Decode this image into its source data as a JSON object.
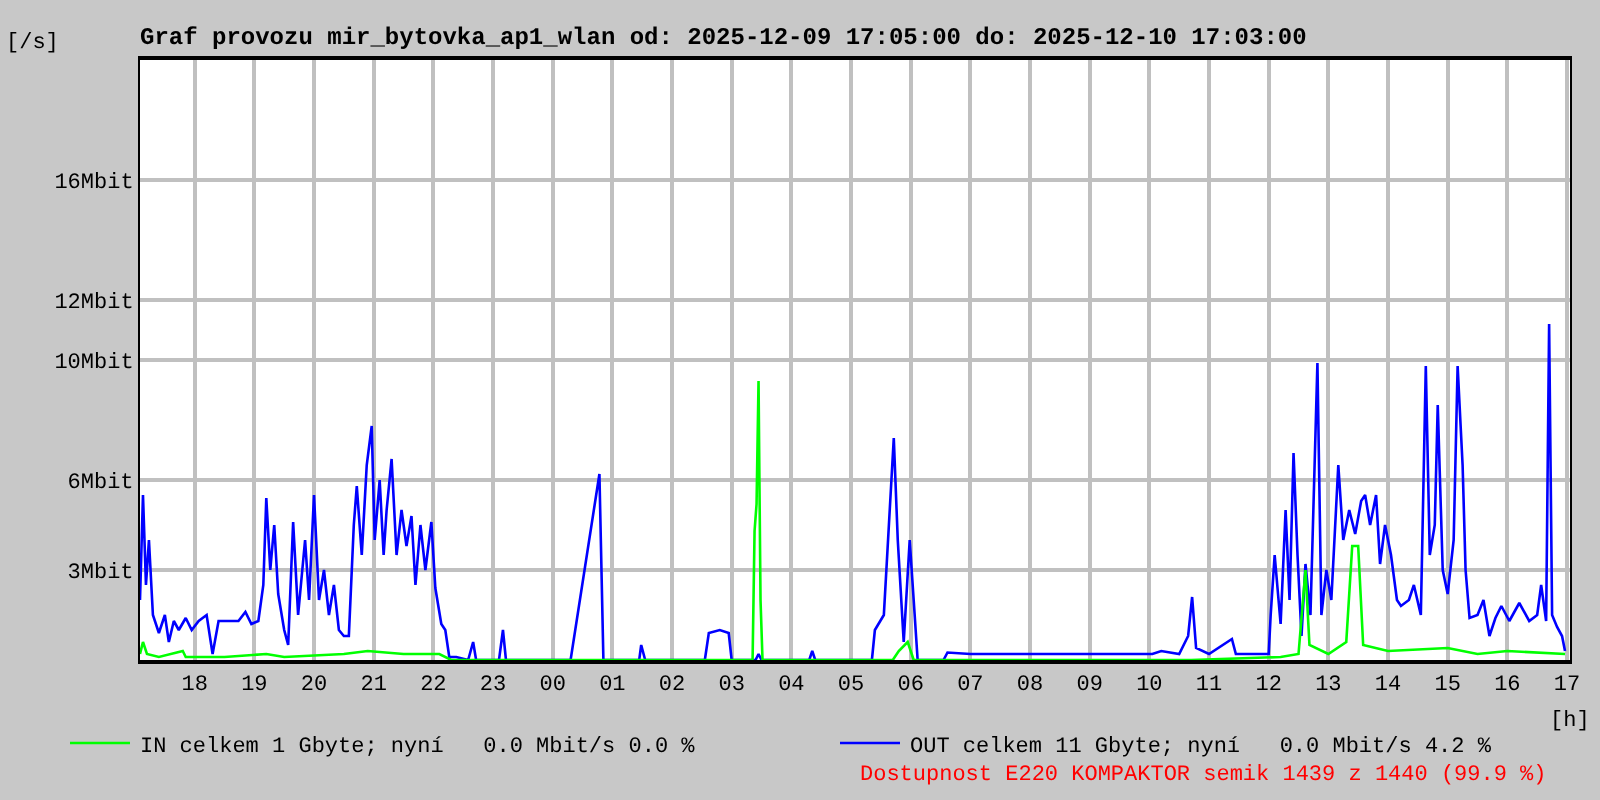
{
  "chart_data": {
    "type": "line",
    "title": "Graf provozu mir_bytovka_ap1_wlan od: 2025-12-09 17:05:00 do: 2025-12-10 17:03:00",
    "xlabel": "[h]",
    "ylabel": "[/s]",
    "xlim": [
      "2025-12-09T17:05",
      "2025-12-10T17:03"
    ],
    "ylim": [
      0,
      20
    ],
    "xticks": [
      {
        "value": "2025-12-09T18:00",
        "label": "18"
      },
      {
        "value": "2025-12-09T19:00",
        "label": "19"
      },
      {
        "value": "2025-12-09T20:00",
        "label": "20"
      },
      {
        "value": "2025-12-09T21:00",
        "label": "21"
      },
      {
        "value": "2025-12-09T22:00",
        "label": "22"
      },
      {
        "value": "2025-12-09T23:00",
        "label": "23"
      },
      {
        "value": "2025-12-10T00:00",
        "label": "00"
      },
      {
        "value": "2025-12-10T01:00",
        "label": "01"
      },
      {
        "value": "2025-12-10T02:00",
        "label": "02"
      },
      {
        "value": "2025-12-10T03:00",
        "label": "03"
      },
      {
        "value": "2025-12-10T04:00",
        "label": "04"
      },
      {
        "value": "2025-12-10T05:00",
        "label": "05"
      },
      {
        "value": "2025-12-10T06:00",
        "label": "06"
      },
      {
        "value": "2025-12-10T07:00",
        "label": "07"
      },
      {
        "value": "2025-12-10T08:00",
        "label": "08"
      },
      {
        "value": "2025-12-10T09:00",
        "label": "09"
      },
      {
        "value": "2025-12-10T10:00",
        "label": "10"
      },
      {
        "value": "2025-12-10T11:00",
        "label": "11"
      },
      {
        "value": "2025-12-10T12:00",
        "label": "12"
      },
      {
        "value": "2025-12-10T13:00",
        "label": "13"
      },
      {
        "value": "2025-12-10T14:00",
        "label": "14"
      },
      {
        "value": "2025-12-10T15:00",
        "label": "15"
      },
      {
        "value": "2025-12-10T16:00",
        "label": "16"
      },
      {
        "value": "2025-12-10T17:00",
        "label": "17"
      }
    ],
    "yticks": [
      {
        "value": 3,
        "label": "3Mbit"
      },
      {
        "value": 6,
        "label": "6Mbit"
      },
      {
        "value": 10,
        "label": "10Mbit"
      },
      {
        "value": 12,
        "label": "12Mbit"
      },
      {
        "value": 16,
        "label": "16Mbit"
      }
    ],
    "grid": true,
    "legend": "bottom",
    "annotations": [
      "Dostupnost E220 KOMPAKTOR semik 1439 z 1440 (99.9 %)"
    ],
    "series": [
      {
        "name": "IN celkem 1 Gbyte; nyní   0.0 Mbit/s 0.0 %",
        "color": "#00ff00",
        "x": [
          "2025-12-09T17:05",
          "2025-12-09T17:08",
          "2025-12-09T17:12",
          "2025-12-09T17:24",
          "2025-12-09T17:48",
          "2025-12-09T17:51",
          "2025-12-09T18:30",
          "2025-12-09T19:12",
          "2025-12-09T19:30",
          "2025-12-09T20:30",
          "2025-12-09T20:54",
          "2025-12-09T21:30",
          "2025-12-09T22:06",
          "2025-12-09T22:18",
          "2025-12-10T03:21",
          "2025-12-10T03:23",
          "2025-12-10T03:25",
          "2025-12-10T03:27",
          "2025-12-10T03:29",
          "2025-12-10T03:31",
          "2025-12-10T05:42",
          "2025-12-10T05:48",
          "2025-12-10T05:57",
          "2025-12-10T06:03",
          "2025-12-10T10:42",
          "2025-12-10T12:12",
          "2025-12-10T12:30",
          "2025-12-10T12:37",
          "2025-12-10T12:41",
          "2025-12-10T13:00",
          "2025-12-10T13:18",
          "2025-12-10T13:24",
          "2025-12-10T13:30",
          "2025-12-10T13:35",
          "2025-12-10T14:00",
          "2025-12-10T15:00",
          "2025-12-10T15:30",
          "2025-12-10T16:00",
          "2025-12-10T16:58"
        ],
        "values": [
          0.2,
          0.6,
          0.2,
          0.1,
          0.3,
          0.1,
          0.1,
          0.2,
          0.1,
          0.2,
          0.3,
          0.2,
          0.2,
          0.0,
          0.0,
          4.3,
          5.2,
          9.3,
          2.0,
          0.0,
          0.0,
          0.3,
          0.6,
          0.0,
          0.0,
          0.1,
          0.2,
          3.0,
          0.5,
          0.2,
          0.6,
          3.8,
          3.8,
          0.5,
          0.3,
          0.4,
          0.2,
          0.3,
          0.2
        ]
      },
      {
        "name": "OUT celkem 11 Gbyte; nyní   0.0 Mbit/s 4.2 %",
        "color": "#0000ff",
        "x": [
          "2025-12-09T17:05",
          "2025-12-09T17:08",
          "2025-12-09T17:11",
          "2025-12-09T17:14",
          "2025-12-09T17:18",
          "2025-12-09T17:24",
          "2025-12-09T17:30",
          "2025-12-09T17:34",
          "2025-12-09T17:39",
          "2025-12-09T17:44",
          "2025-12-09T17:51",
          "2025-12-09T17:57",
          "2025-12-09T18:04",
          "2025-12-09T18:12",
          "2025-12-09T18:18",
          "2025-12-09T18:24",
          "2025-12-09T18:44",
          "2025-12-09T18:51",
          "2025-12-09T18:57",
          "2025-12-09T19:04",
          "2025-12-09T19:09",
          "2025-12-09T19:12",
          "2025-12-09T19:16",
          "2025-12-09T19:20",
          "2025-12-09T19:24",
          "2025-12-09T19:30",
          "2025-12-09T19:34",
          "2025-12-09T19:39",
          "2025-12-09T19:44",
          "2025-12-09T19:51",
          "2025-12-09T19:55",
          "2025-12-09T20:00",
          "2025-12-09T20:05",
          "2025-12-09T20:10",
          "2025-12-09T20:15",
          "2025-12-09T20:20",
          "2025-12-09T20:25",
          "2025-12-09T20:30",
          "2025-12-09T20:35",
          "2025-12-09T20:40",
          "2025-12-09T20:43",
          "2025-12-09T20:48",
          "2025-12-09T20:53",
          "2025-12-09T20:58",
          "2025-12-09T21:01",
          "2025-12-09T21:06",
          "2025-12-09T21:10",
          "2025-12-09T21:13",
          "2025-12-09T21:18",
          "2025-12-09T21:23",
          "2025-12-09T21:28",
          "2025-12-09T21:33",
          "2025-12-09T21:38",
          "2025-12-09T21:42",
          "2025-12-09T21:47",
          "2025-12-09T21:52",
          "2025-12-09T21:58",
          "2025-12-09T22:02",
          "2025-12-09T22:08",
          "2025-12-09T22:12",
          "2025-12-09T22:16",
          "2025-12-09T22:23",
          "2025-12-09T22:35",
          "2025-12-09T22:40",
          "2025-12-09T22:43",
          "2025-12-09T23:06",
          "2025-12-09T23:10",
          "2025-12-09T23:13",
          "2025-12-10T00:18",
          "2025-12-10T00:47",
          "2025-12-10T00:51",
          "2025-12-10T01:27",
          "2025-12-10T01:29",
          "2025-12-10T01:33",
          "2025-12-10T02:33",
          "2025-12-10T02:37",
          "2025-12-10T02:48",
          "2025-12-10T02:57",
          "2025-12-10T03:00",
          "2025-12-10T03:24",
          "2025-12-10T03:27",
          "2025-12-10T03:30",
          "2025-12-10T04:18",
          "2025-12-10T04:21",
          "2025-12-10T04:24",
          "2025-12-10T05:21",
          "2025-12-10T05:24",
          "2025-12-10T05:33",
          "2025-12-10T05:43",
          "2025-12-10T05:47",
          "2025-12-10T05:53",
          "2025-12-10T05:59",
          "2025-12-10T06:03",
          "2025-12-10T06:07",
          "2025-12-10T06:33",
          "2025-12-10T06:37",
          "2025-12-10T07:00",
          "2025-12-10T08:00",
          "2025-12-10T09:00",
          "2025-12-10T10:03",
          "2025-12-10T10:12",
          "2025-12-10T10:30",
          "2025-12-10T10:39",
          "2025-12-10T10:43",
          "2025-12-10T10:47",
          "2025-12-10T11:00",
          "2025-12-10T11:23",
          "2025-12-10T11:27",
          "2025-12-10T12:00",
          "2025-12-10T12:02",
          "2025-12-10T12:06",
          "2025-12-10T12:12",
          "2025-12-10T12:17",
          "2025-12-10T12:21",
          "2025-12-10T12:25",
          "2025-12-10T12:29",
          "2025-12-10T12:33",
          "2025-12-10T12:37",
          "2025-12-10T12:42",
          "2025-12-10T12:49",
          "2025-12-10T12:53",
          "2025-12-10T12:58",
          "2025-12-10T13:03",
          "2025-12-10T13:10",
          "2025-12-10T13:15",
          "2025-12-10T13:21",
          "2025-12-10T13:27",
          "2025-12-10T13:33",
          "2025-12-10T13:37",
          "2025-12-10T13:42",
          "2025-12-10T13:48",
          "2025-12-10T13:52",
          "2025-12-10T13:57",
          "2025-12-10T14:03",
          "2025-12-10T14:09",
          "2025-12-10T14:13",
          "2025-12-10T14:21",
          "2025-12-10T14:26",
          "2025-12-10T14:33",
          "2025-12-10T14:38",
          "2025-12-10T14:42",
          "2025-12-10T14:47",
          "2025-12-10T14:50",
          "2025-12-10T14:55",
          "2025-12-10T15:00",
          "2025-12-10T15:06",
          "2025-12-10T15:10",
          "2025-12-10T15:15",
          "2025-12-10T15:18",
          "2025-12-10T15:22",
          "2025-12-10T15:30",
          "2025-12-10T15:36",
          "2025-12-10T15:42",
          "2025-12-10T15:48",
          "2025-12-10T15:54",
          "2025-12-10T16:02",
          "2025-12-10T16:12",
          "2025-12-10T16:22",
          "2025-12-10T16:30",
          "2025-12-10T16:34",
          "2025-12-10T16:39",
          "2025-12-10T16:42",
          "2025-12-10T16:45",
          "2025-12-10T16:50",
          "2025-12-10T16:55",
          "2025-12-10T16:58"
        ],
        "values": [
          2.0,
          5.5,
          2.5,
          4.0,
          1.5,
          0.9,
          1.5,
          0.6,
          1.3,
          1.0,
          1.4,
          1.0,
          1.3,
          1.5,
          0.2,
          1.3,
          1.3,
          1.6,
          1.2,
          1.3,
          2.5,
          5.4,
          3.0,
          4.5,
          2.2,
          1.0,
          0.5,
          4.6,
          1.5,
          4.0,
          2.0,
          5.5,
          2.0,
          3.0,
          1.5,
          2.5,
          1.0,
          0.8,
          0.8,
          4.5,
          5.8,
          3.5,
          6.5,
          7.8,
          4.0,
          6.0,
          3.5,
          5.0,
          6.7,
          3.5,
          5.0,
          3.8,
          4.8,
          2.5,
          4.5,
          3.0,
          4.6,
          2.4,
          1.2,
          1.0,
          0.1,
          0.1,
          0.0,
          0.6,
          0.0,
          0.0,
          1.0,
          0.0,
          0.0,
          6.2,
          0.0,
          0.0,
          0.5,
          0.0,
          0.0,
          0.9,
          1.0,
          0.9,
          0.0,
          0.0,
          0.2,
          0.0,
          0.0,
          0.3,
          0.0,
          0.0,
          1.0,
          1.5,
          7.4,
          4.0,
          0.6,
          4.0,
          2.0,
          0.0,
          0.0,
          0.25,
          0.2,
          0.2,
          0.2,
          0.2,
          0.3,
          0.2,
          0.8,
          2.1,
          0.4,
          0.2,
          0.7,
          0.2,
          0.2,
          1.5,
          3.5,
          1.2,
          5.0,
          2.0,
          6.9,
          3.5,
          0.8,
          3.2,
          1.5,
          9.9,
          1.5,
          3.0,
          2.0,
          6.5,
          4.0,
          5.0,
          4.2,
          5.3,
          5.5,
          4.5,
          5.5,
          3.2,
          4.5,
          3.5,
          2.0,
          1.8,
          2.0,
          2.5,
          1.5,
          9.8,
          3.5,
          4.5,
          8.5,
          3.0,
          2.2,
          4.0,
          9.8,
          6.5,
          3.0,
          1.4,
          1.5,
          2.0,
          0.8,
          1.4,
          1.8,
          1.3,
          1.9,
          1.3,
          1.5,
          2.5,
          1.3,
          11.2,
          1.5,
          1.1,
          0.8,
          0.3
        ]
      }
    ]
  }
}
